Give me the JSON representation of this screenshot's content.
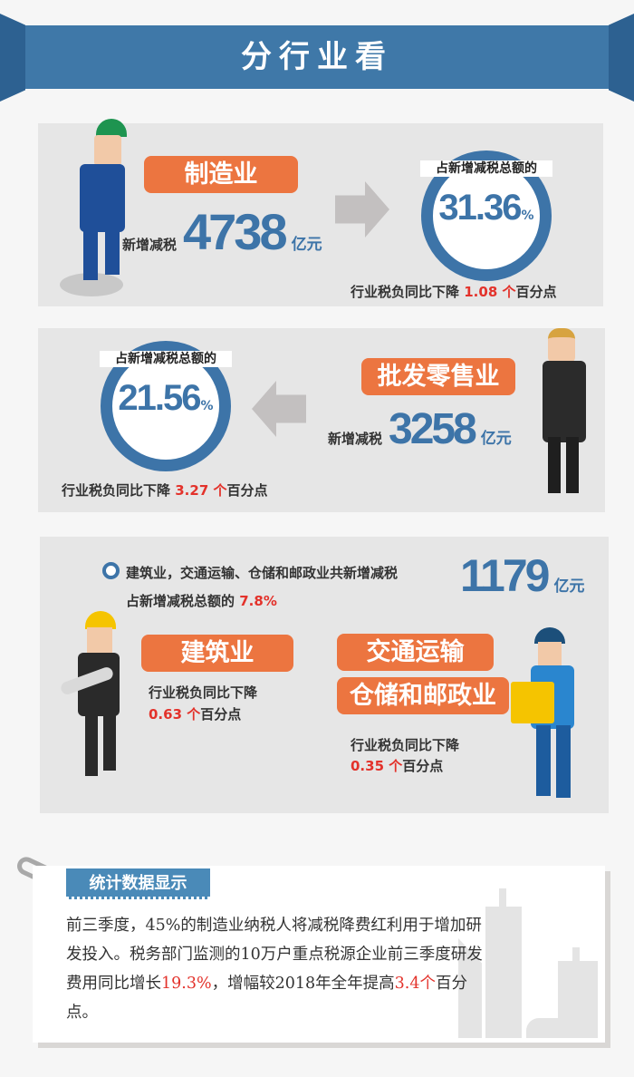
{
  "header": {
    "title": "分行业看"
  },
  "manufacturing": {
    "label": "制造业",
    "new_cut_label": "新增减税",
    "amount": "4738",
    "unit": "亿元",
    "share_caption": "占新增减税总额的",
    "share": "31.36",
    "share_unit": "%",
    "burden_prefix": "行业税负同比下降",
    "burden_value": "1.08 个",
    "burden_suffix": "百分点"
  },
  "wholesale": {
    "label": "批发零售业",
    "new_cut_label": "新增减税",
    "amount": "3258",
    "unit": "亿元",
    "share_caption": "占新增减税总额的",
    "share": "21.56",
    "share_unit": "%",
    "burden_prefix": "行业税负同比下降",
    "burden_value": "3.27 个",
    "burden_suffix": "百分点"
  },
  "others": {
    "summary": "建筑业，交通运输、仓储和邮政业共新增减税",
    "amount": "1179",
    "unit": "亿元",
    "share_prefix": "占新增减税总额的",
    "share": "7.8%",
    "construction": {
      "label": "建筑业",
      "burden_prefix": "行业税负同比下降",
      "burden_value": "0.63 个",
      "burden_suffix": "百分点"
    },
    "transport": {
      "label1": "交通运输",
      "label2": "仓储和邮政业",
      "burden_prefix": "行业税负同比下降",
      "burden_value": "0.35 个",
      "burden_suffix": "百分点"
    }
  },
  "note": {
    "tag": "统计数据显示",
    "text1": "前三季度，45%的制造业纳税人将减税降费红利用于增加研发投入。税务部门监测的10万户重点税源企业前三季度研发费用同比增长",
    "red1": "19.3%",
    "text2": "，增幅较2018年全年提高",
    "red2": "3.4个",
    "text3": "百分点。"
  },
  "colors": {
    "blue": "#3f78a8",
    "orange": "#ec7540",
    "red": "#e3322b",
    "panel": "#e6e6e6"
  }
}
